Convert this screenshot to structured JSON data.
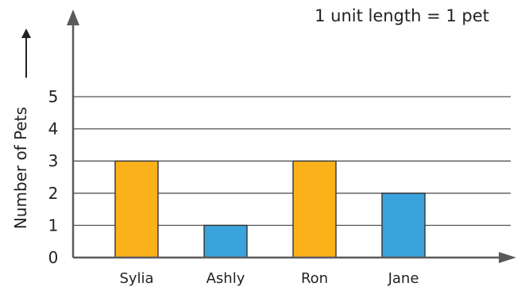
{
  "chart_data": {
    "type": "bar",
    "title": "",
    "note": "1 unit length = 1 pet",
    "xlabel": "",
    "ylabel": "Number of Pets",
    "categories": [
      "Sylia",
      "Ashly",
      "Ron",
      "Jane"
    ],
    "values": [
      3,
      1,
      3,
      2
    ],
    "bar_colors": [
      "#FBB11A",
      "#3AA3DB",
      "#FBB11A",
      "#3AA3DB"
    ],
    "ylim": [
      0,
      5
    ],
    "yticks": [
      "0",
      "1",
      "2",
      "3",
      "4",
      "5"
    ],
    "grid": true,
    "legend": "none"
  },
  "colors": {
    "axis": "#5a5a5a",
    "grid": "#555555",
    "bar_outline": "#333333",
    "text": "#222222"
  }
}
